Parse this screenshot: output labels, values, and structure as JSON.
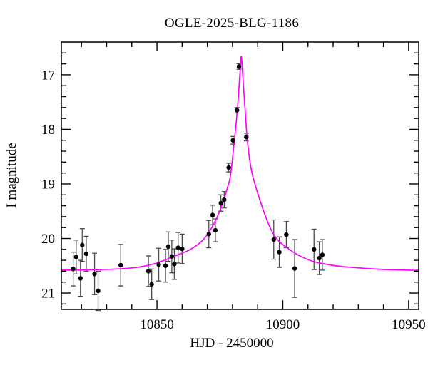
{
  "chart_data": {
    "type": "scatter",
    "title": "OGLE-2025-BLG-1186",
    "xlabel": "HJD - 2450000",
    "ylabel": "I magnitude",
    "xlim": [
      10812,
      10954
    ],
    "ylim": [
      16.4,
      21.3
    ],
    "y_axis_inverted_magnitudes": true,
    "x_major_ticks": [
      10850,
      10900,
      10950
    ],
    "x_major_tick_labels": [
      "10850",
      "10900",
      "10950"
    ],
    "x_minor_tick_step": 10,
    "y_major_ticks": [
      17,
      18,
      19,
      20,
      21
    ],
    "y_major_tick_labels": [
      "17",
      "18",
      "19",
      "20",
      "21"
    ],
    "y_minor_tick_step": 0.2,
    "legend": "none",
    "grid": false,
    "colors": {
      "model_curve": "#ff00ff",
      "data_points": "#000000",
      "error_bars": "#4b4b4b",
      "frame": "#000000",
      "background": "#ffffff"
    },
    "model": {
      "description": "microlensing point-lens model curve",
      "t0": 10883.5,
      "baseline_mag": 20.58,
      "peak_mag": 16.65
    },
    "points": [
      [
        10816.7,
        20.56,
        0.31
      ],
      [
        10817.9,
        20.34,
        0.31
      ],
      [
        10819.6,
        20.73,
        0.33
      ],
      [
        10820.3,
        20.12,
        0.3
      ],
      [
        10821.9,
        20.28,
        0.32
      ],
      [
        10825.2,
        20.65,
        0.38
      ],
      [
        10826.6,
        20.96,
        0.36
      ],
      [
        10835.6,
        20.49,
        0.38
      ],
      [
        10846.6,
        20.6,
        0.28
      ],
      [
        10847.9,
        20.84,
        0.28
      ],
      [
        10850.7,
        20.48,
        0.3
      ],
      [
        10853.4,
        20.5,
        0.3
      ],
      [
        10854.5,
        20.15,
        0.27
      ],
      [
        10855.9,
        20.33,
        0.3
      ],
      [
        10856.9,
        20.47,
        0.28
      ],
      [
        10858.4,
        20.17,
        0.28
      ],
      [
        10860.0,
        20.19,
        0.27
      ],
      [
        10870.6,
        19.92,
        0.25
      ],
      [
        10872.1,
        19.57,
        0.18
      ],
      [
        10873.2,
        19.85,
        0.21
      ],
      [
        10875.4,
        19.35,
        0.15
      ],
      [
        10876.7,
        19.29,
        0.15
      ],
      [
        10878.5,
        18.7,
        0.08
      ],
      [
        10880.2,
        18.2,
        0.07
      ],
      [
        10881.8,
        17.65,
        0.05
      ],
      [
        10882.6,
        16.85,
        0.05
      ],
      [
        10885.5,
        18.14,
        0.07
      ],
      [
        10896.4,
        20.02,
        0.36
      ],
      [
        10898.6,
        20.25,
        0.28
      ],
      [
        10901.4,
        19.93,
        0.24
      ],
      [
        10904.7,
        20.55,
        0.53
      ],
      [
        10912.4,
        20.2,
        0.37
      ],
      [
        10914.5,
        20.36,
        0.3
      ],
      [
        10915.7,
        20.3,
        0.28
      ]
    ],
    "model_curve": [
      [
        10812.0,
        20.58
      ],
      [
        10822.0,
        20.575
      ],
      [
        10832.0,
        20.565
      ],
      [
        10841.0,
        20.54
      ],
      [
        10846.0,
        20.5
      ],
      [
        10850.0,
        20.45
      ],
      [
        10853.0,
        20.4
      ],
      [
        10856.0,
        20.34
      ],
      [
        10860.0,
        20.27
      ],
      [
        10863.6,
        20.2
      ],
      [
        10867.4,
        20.07
      ],
      [
        10869.8,
        19.95
      ],
      [
        10872.1,
        19.78
      ],
      [
        10874.0,
        19.6
      ],
      [
        10875.5,
        19.43
      ],
      [
        10876.9,
        19.25
      ],
      [
        10878.3,
        19.02
      ],
      [
        10879.2,
        18.88
      ],
      [
        10880.6,
        18.28
      ],
      [
        10881.9,
        17.68
      ],
      [
        10882.9,
        17.03
      ],
      [
        10883.35,
        16.7
      ],
      [
        10883.5,
        16.65
      ],
      [
        10883.65,
        16.7
      ],
      [
        10884.2,
        17.1
      ],
      [
        10885.1,
        17.7
      ],
      [
        10885.8,
        18.18
      ],
      [
        10886.9,
        18.6
      ],
      [
        10888.2,
        18.9
      ],
      [
        10891.0,
        19.32
      ],
      [
        10893.9,
        19.7
      ],
      [
        10896.3,
        19.93
      ],
      [
        10898.5,
        20.06
      ],
      [
        10901.3,
        20.16
      ],
      [
        10905.0,
        20.28
      ],
      [
        10909.0,
        20.37
      ],
      [
        10912.5,
        20.43
      ],
      [
        10917.0,
        20.47
      ],
      [
        10922.0,
        20.51
      ],
      [
        10930.0,
        20.54
      ],
      [
        10940.0,
        20.57
      ],
      [
        10954.0,
        20.585
      ]
    ]
  }
}
